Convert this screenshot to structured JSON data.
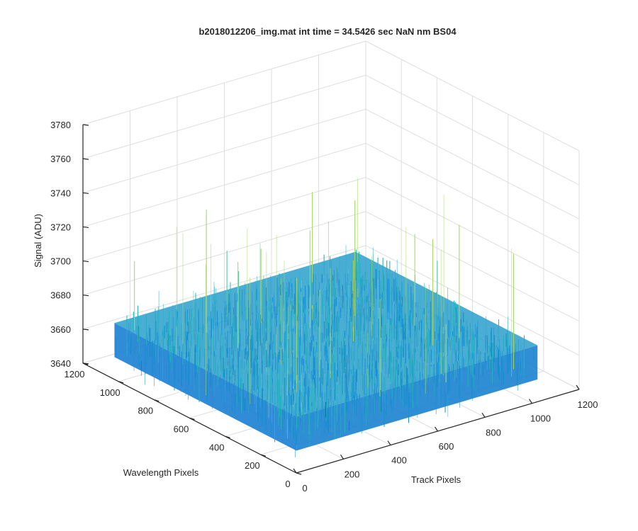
{
  "chart_data": {
    "type": "surface",
    "title": "b2018012206_img.mat int time = 34.5426 sec   NaN nm BS04",
    "xlabel": "Track Pixels",
    "ylabel": "Wavelength Pixels",
    "zlabel": "Signal (ADU)",
    "xlim": [
      0,
      1200
    ],
    "ylim": [
      0,
      1200
    ],
    "zlim": [
      3640,
      3780
    ],
    "x_ticks": [
      "0",
      "200",
      "400",
      "600",
      "800",
      "1000",
      "1200"
    ],
    "y_ticks": [
      "0",
      "200",
      "400",
      "600",
      "800",
      "1000",
      "1200"
    ],
    "z_ticks": [
      "3640",
      "3660",
      "3680",
      "3700",
      "3720",
      "3740",
      "3760",
      "3780"
    ],
    "data_extent": {
      "x": [
        1,
        1024
      ],
      "y": [
        1,
        1024
      ]
    },
    "surface_mean": 3665,
    "surface_range": [
      3645,
      3735
    ],
    "grid": true,
    "colormap": [
      "#0b5fd4",
      "#1a8fd0",
      "#28b0c0",
      "#5cc6a0",
      "#a6d96a"
    ]
  }
}
